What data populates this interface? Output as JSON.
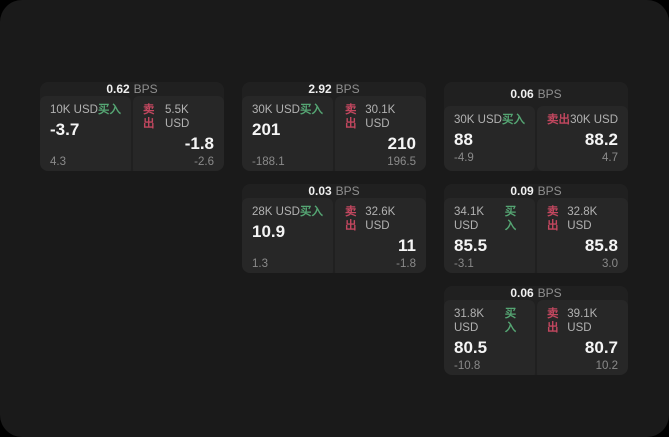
{
  "labels": {
    "bps_suffix": "BPS",
    "buy": "买入",
    "sell": "卖出"
  },
  "colors": {
    "outside": "#000000",
    "window_bg": "#1a1a1a",
    "card_bg": "#202020",
    "panel_bg": "#272727",
    "buy_green": "#55a573",
    "sell_red": "#c2475f",
    "text_primary": "#f5f5f5",
    "text_secondary": "#b2b2b2",
    "text_muted": "#8a8a8a"
  },
  "cards": [
    {
      "bps": "0.62",
      "buy": {
        "amount": "10K USD",
        "value": "-3.7",
        "sub": "4.3"
      },
      "sell": {
        "amount": "5.5K USD",
        "value": "-1.8",
        "sub": "-2.6"
      }
    },
    {
      "bps": "2.92",
      "buy": {
        "amount": "30K USD",
        "value": "201",
        "sub": "-188.1"
      },
      "sell": {
        "amount": "30.1K USD",
        "value": "210",
        "sub": "196.5"
      }
    },
    {
      "bps": "0.06",
      "buy": {
        "amount": "30K USD",
        "value": "88",
        "sub": "-4.9"
      },
      "sell": {
        "amount": "30K USD",
        "value": "88.2",
        "sub": "4.7"
      }
    },
    {
      "bps": "0.03",
      "buy": {
        "amount": "28K USD",
        "value": "10.9",
        "sub": "1.3"
      },
      "sell": {
        "amount": "32.6K USD",
        "value": "11",
        "sub": "-1.8"
      }
    },
    {
      "bps": "0.09",
      "buy": {
        "amount": "34.1K USD",
        "value": "85.5",
        "sub": "-3.1"
      },
      "sell": {
        "amount": "32.8K USD",
        "value": "85.8",
        "sub": "3.0"
      }
    },
    {
      "bps": "0.06",
      "buy": {
        "amount": "31.8K USD",
        "value": "80.5",
        "sub": "-10.8"
      },
      "sell": {
        "amount": "39.1K USD",
        "value": "80.7",
        "sub": "10.2"
      }
    }
  ]
}
